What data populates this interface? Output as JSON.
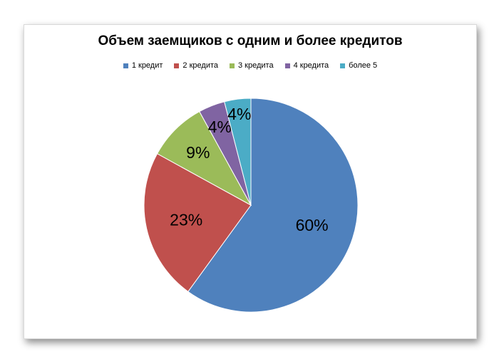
{
  "chart_data": {
    "type": "pie",
    "title": "Объем заемщиков с одним и более кредитов",
    "legend_position": "top",
    "categories": [
      "1 кредит",
      "2 кредита",
      "3 кредита",
      "4 кредита",
      "более 5"
    ],
    "values": [
      60,
      23,
      9,
      4,
      4
    ],
    "labels": [
      "60%",
      "23%",
      "9%",
      "4%",
      "4%"
    ],
    "colors": [
      "#4f81bd",
      "#c0504d",
      "#9bbb59",
      "#8064a2",
      "#4bacc6"
    ]
  }
}
